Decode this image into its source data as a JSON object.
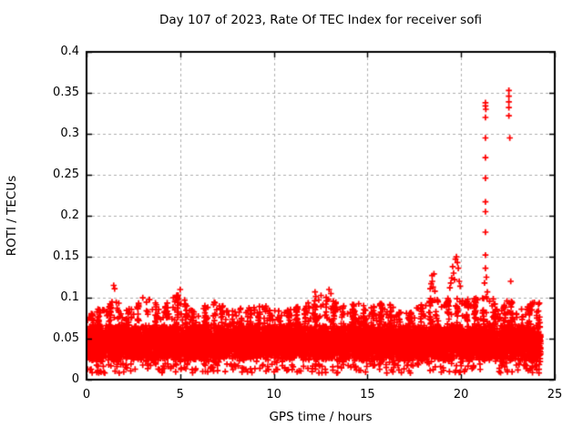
{
  "chart_data": {
    "type": "scatter",
    "title": "Day 107 of 2023, Rate Of TEC Index for receiver sofi",
    "xlabel": "GPS time / hours",
    "ylabel": "ROTI / TECUs",
    "xlim": [
      0,
      25
    ],
    "ylim": [
      0,
      0.4
    ],
    "grid": true,
    "legend": "none",
    "marker": "plus",
    "colors": {
      "marker": "#ff0000",
      "grid": "#b0b0b0",
      "axis": "#000000",
      "background": "#ffffff",
      "text": "#000000"
    },
    "xticks": [
      {
        "value": 0,
        "label": "0"
      },
      {
        "value": 5,
        "label": "5"
      },
      {
        "value": 10,
        "label": "10"
      },
      {
        "value": 15,
        "label": "15"
      },
      {
        "value": 20,
        "label": "20"
      },
      {
        "value": 25,
        "label": "25"
      }
    ],
    "yticks": [
      {
        "value": 0,
        "label": "0"
      },
      {
        "value": 0.05,
        "label": "0.05"
      },
      {
        "value": 0.1,
        "label": "0.1"
      },
      {
        "value": 0.15,
        "label": "0.15"
      },
      {
        "value": 0.2,
        "label": "0.2"
      },
      {
        "value": 0.25,
        "label": "0.25"
      },
      {
        "value": 0.3,
        "label": "0.3"
      },
      {
        "value": 0.35,
        "label": "0.35"
      },
      {
        "value": 0.4,
        "label": "0.4"
      }
    ],
    "band": {
      "description": "dense noisy ROTI band of + markers covering whole day",
      "seed": 1072023,
      "n_points": 9000,
      "x_start": 0.0,
      "x_end": 24.25,
      "y_min": 0.008,
      "core_low": 0.02,
      "core_high": 0.068,
      "core_mid": 0.055,
      "low_fringe_frac": 0.025,
      "tail_frac": 0.12,
      "envelope_step": 0.5,
      "envelope_top": [
        0.078,
        0.085,
        0.095,
        0.102,
        0.086,
        0.092,
        0.1,
        0.098,
        0.088,
        0.1,
        0.106,
        0.088,
        0.082,
        0.096,
        0.094,
        0.09,
        0.083,
        0.094,
        0.088,
        0.091,
        0.086,
        0.082,
        0.088,
        0.092,
        0.1,
        0.104,
        0.104,
        0.092,
        0.088,
        0.098,
        0.086,
        0.092,
        0.096,
        0.088,
        0.082,
        0.086,
        0.094,
        0.102,
        0.092,
        0.106,
        0.1,
        0.102,
        0.1,
        0.108,
        0.088,
        0.1,
        0.088,
        0.092,
        0.095
      ]
    },
    "outliers": [
      [
        1.45,
        0.115
      ],
      [
        1.5,
        0.111
      ],
      [
        5.0,
        0.11
      ],
      [
        12.2,
        0.107
      ],
      [
        12.95,
        0.11
      ],
      [
        13.05,
        0.105
      ],
      [
        18.35,
        0.111
      ],
      [
        18.4,
        0.117
      ],
      [
        18.45,
        0.127
      ],
      [
        18.46,
        0.12
      ],
      [
        18.5,
        0.113
      ],
      [
        18.55,
        0.129
      ],
      [
        18.6,
        0.108
      ],
      [
        19.4,
        0.112
      ],
      [
        19.45,
        0.118
      ],
      [
        19.5,
        0.124
      ],
      [
        19.55,
        0.138
      ],
      [
        19.6,
        0.13
      ],
      [
        19.65,
        0.122
      ],
      [
        19.7,
        0.147
      ],
      [
        19.75,
        0.15
      ],
      [
        19.8,
        0.143
      ],
      [
        19.85,
        0.136
      ],
      [
        19.9,
        0.12
      ],
      [
        19.95,
        0.114
      ],
      [
        21.25,
        0.118
      ],
      [
        21.3,
        0.136
      ],
      [
        21.3,
        0.152
      ],
      [
        21.3,
        0.18
      ],
      [
        21.3,
        0.205
      ],
      [
        21.3,
        0.217
      ],
      [
        21.3,
        0.246
      ],
      [
        21.3,
        0.271
      ],
      [
        21.3,
        0.295
      ],
      [
        21.3,
        0.32
      ],
      [
        21.3,
        0.334
      ],
      [
        21.3,
        0.338
      ],
      [
        21.32,
        0.33
      ],
      [
        21.35,
        0.125
      ],
      [
        21.4,
        0.107
      ],
      [
        22.55,
        0.353
      ],
      [
        22.55,
        0.346
      ],
      [
        22.55,
        0.339
      ],
      [
        22.55,
        0.332
      ],
      [
        22.55,
        0.322
      ],
      [
        22.6,
        0.295
      ],
      [
        22.65,
        0.12
      ]
    ]
  }
}
